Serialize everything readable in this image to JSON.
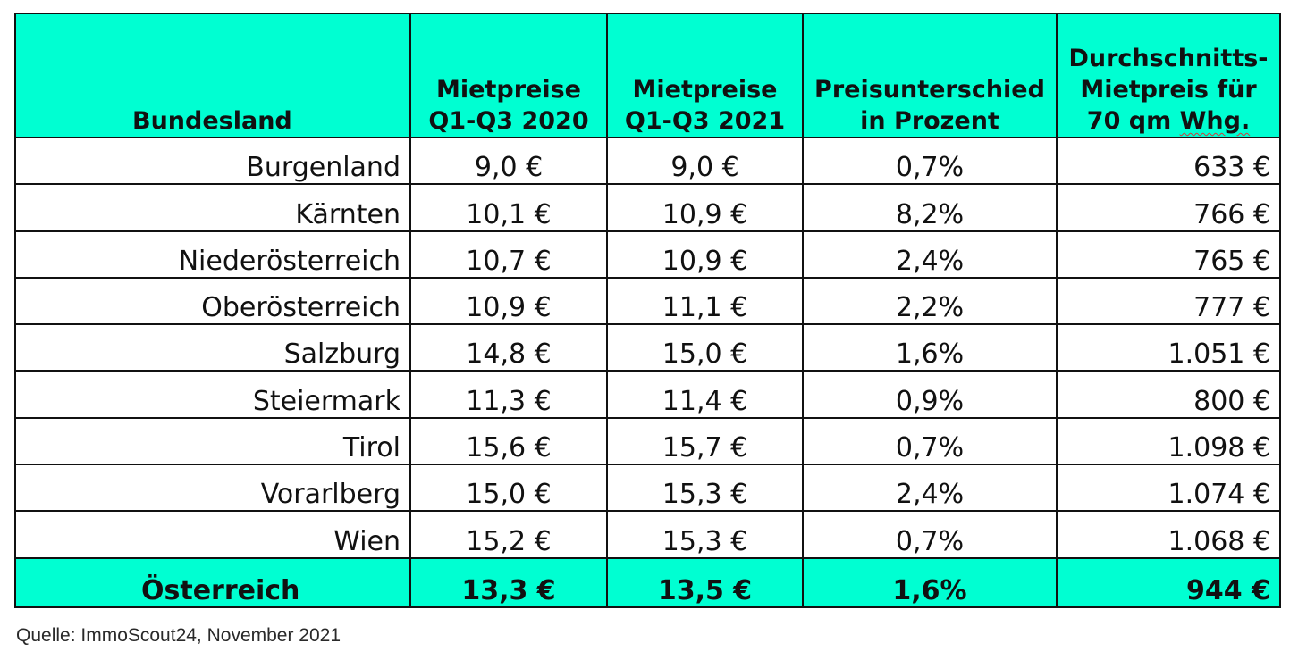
{
  "table": {
    "headers": {
      "bundesland": "Bundesland",
      "col2": [
        "Mietpreise",
        "Q1-Q3 2020"
      ],
      "col3": [
        "Mietpreise",
        "Q1-Q3 2021"
      ],
      "col4": [
        "Preisunterschied",
        "in Prozent"
      ],
      "col5": [
        "Durchschnitts-",
        "Mietpreis für",
        "70 qm",
        "Whg."
      ]
    },
    "rows": [
      {
        "land": "Burgenland",
        "p2020": "9,0 €",
        "p2021": "9,0 €",
        "diff": "0,7%",
        "avg70": "633 €"
      },
      {
        "land": "Kärnten",
        "p2020": "10,1 €",
        "p2021": "10,9 €",
        "diff": "8,2%",
        "avg70": "766 €"
      },
      {
        "land": "Niederösterreich",
        "p2020": "10,7 €",
        "p2021": "10,9 €",
        "diff": "2,4%",
        "avg70": "765 €"
      },
      {
        "land": "Oberösterreich",
        "p2020": "10,9 €",
        "p2021": "11,1 €",
        "diff": "2,2%",
        "avg70": "777 €"
      },
      {
        "land": "Salzburg",
        "p2020": "14,8 €",
        "p2021": "15,0 €",
        "diff": "1,6%",
        "avg70": "1.051 €"
      },
      {
        "land": "Steiermark",
        "p2020": "11,3 €",
        "p2021": "11,4 €",
        "diff": "0,9%",
        "avg70": "800 €"
      },
      {
        "land": "Tirol",
        "p2020": "15,6 €",
        "p2021": "15,7 €",
        "diff": "0,7%",
        "avg70": "1.098 €"
      },
      {
        "land": "Vorarlberg",
        "p2020": "15,0 €",
        "p2021": "15,3 €",
        "diff": "2,4%",
        "avg70": "1.074 €"
      },
      {
        "land": "Wien",
        "p2020": "15,2 €",
        "p2021": "15,3 €",
        "diff": "0,7%",
        "avg70": "1.068 €"
      }
    ],
    "total": {
      "land": "Österreich",
      "p2020": "13,3 €",
      "p2021": "13,5 €",
      "diff": "1,6%",
      "avg70": "944 €"
    }
  },
  "source": "Quelle: ImmoScout24, November 2021",
  "colors": {
    "header_bg": "#00ffd2",
    "border": "#111111",
    "spellcheck_underline": "#d23b3b"
  }
}
